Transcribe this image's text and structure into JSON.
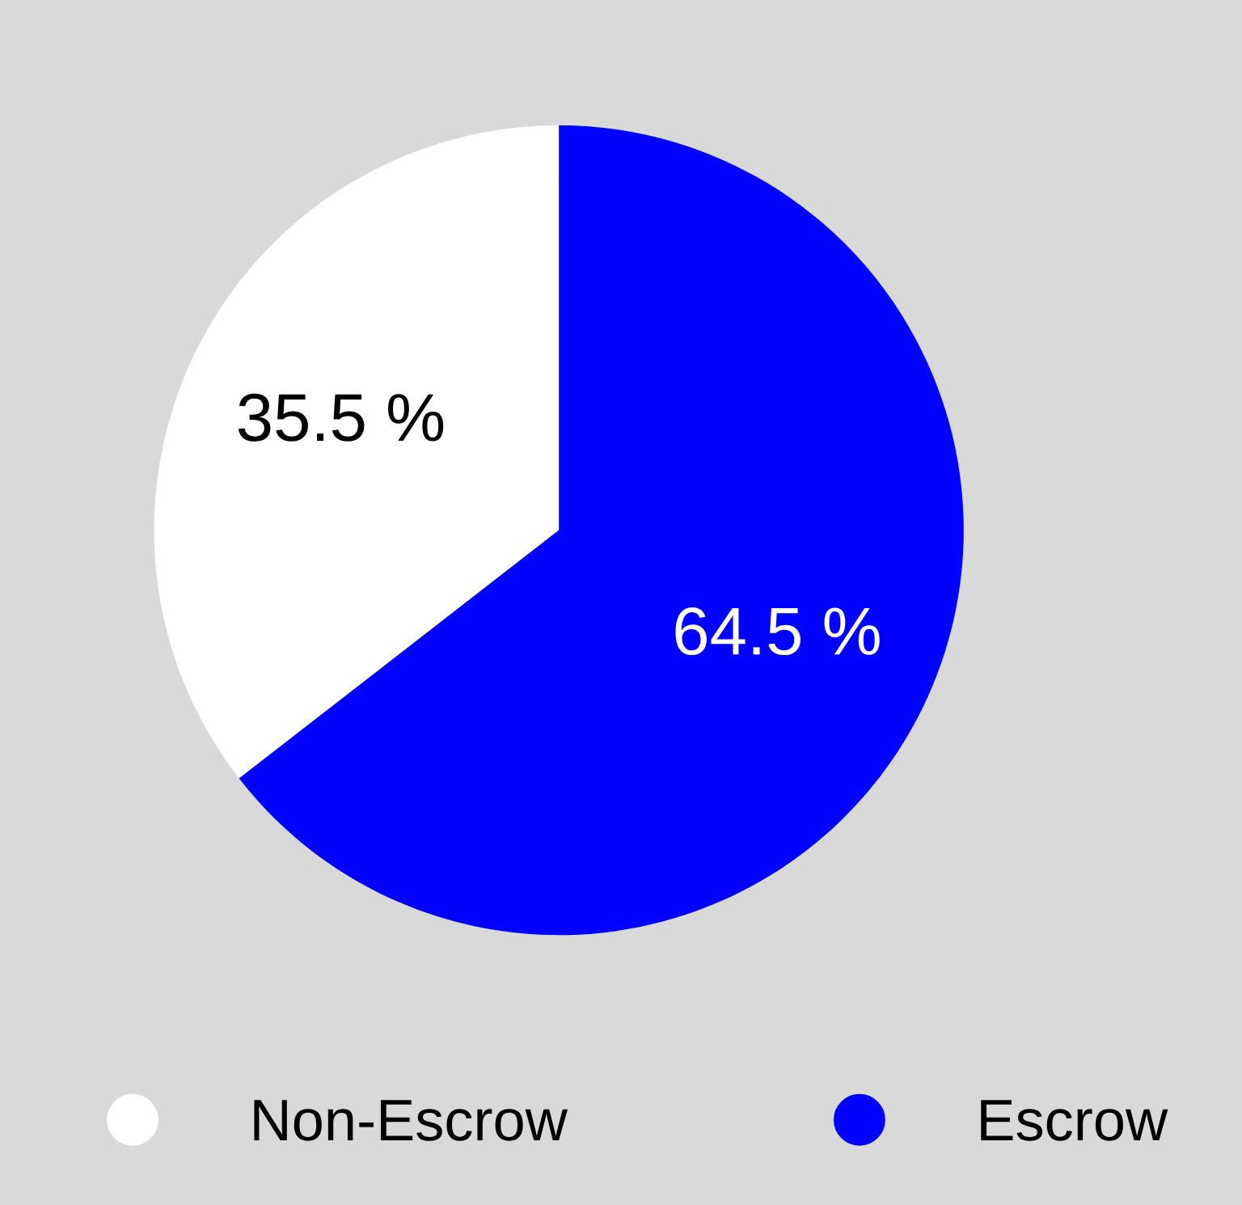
{
  "chart_data": {
    "type": "pie",
    "categories": [
      "Non-Escrow",
      "Escrow"
    ],
    "values": [
      35.5,
      64.5
    ],
    "colors": [
      "#ffffff",
      "#0000ff"
    ],
    "value_labels": [
      "35.5 %",
      "64.5 %"
    ],
    "legend": "bottom"
  }
}
